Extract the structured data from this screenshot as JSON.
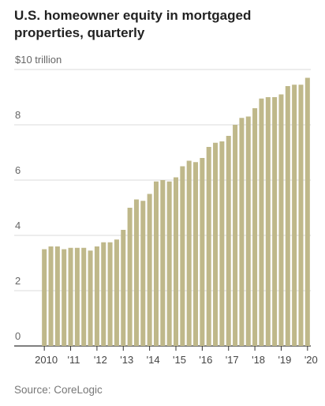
{
  "title_line1": "U.S. homeowner equity in mortgaged",
  "title_line2": "properties, quarterly",
  "source": "Source: CoreLogic",
  "bar_color": "#bfb88a",
  "chart_data": {
    "type": "bar",
    "title": "U.S. homeowner equity in mortgaged properties, quarterly",
    "y_unit_label": "$10 trillion",
    "ylim": [
      0,
      10
    ],
    "y_ticks": [
      {
        "value": 0,
        "label": "0"
      },
      {
        "value": 2,
        "label": "2"
      },
      {
        "value": 4,
        "label": "4"
      },
      {
        "value": 6,
        "label": "6"
      },
      {
        "value": 8,
        "label": "8"
      },
      {
        "value": 10,
        "label": "$10 trillion"
      }
    ],
    "x_ticks": [
      {
        "index": 0,
        "label": "2010"
      },
      {
        "index": 4,
        "label": "'11"
      },
      {
        "index": 8,
        "label": "'12"
      },
      {
        "index": 12,
        "label": "'13"
      },
      {
        "index": 16,
        "label": "'14"
      },
      {
        "index": 20,
        "label": "'15"
      },
      {
        "index": 24,
        "label": "'16"
      },
      {
        "index": 28,
        "label": "'17"
      },
      {
        "index": 32,
        "label": "'18"
      },
      {
        "index": 36,
        "label": "'19"
      },
      {
        "index": 40,
        "label": "'20"
      }
    ],
    "grid": true,
    "values": [
      3.5,
      3.6,
      3.6,
      3.5,
      3.55,
      3.55,
      3.55,
      3.45,
      3.6,
      3.75,
      3.75,
      3.85,
      4.2,
      5.0,
      5.3,
      5.25,
      5.5,
      5.95,
      6.0,
      5.95,
      6.1,
      6.5,
      6.7,
      6.65,
      6.8,
      7.2,
      7.35,
      7.4,
      7.6,
      8.0,
      8.25,
      8.3,
      8.6,
      8.95,
      9.0,
      9.0,
      9.1,
      9.4,
      9.45,
      9.45,
      9.7
    ]
  }
}
